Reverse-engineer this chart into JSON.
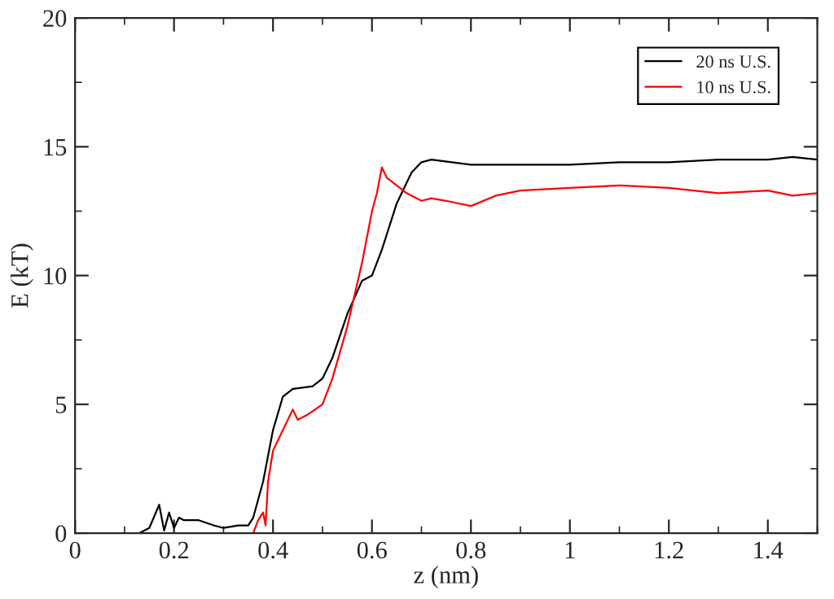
{
  "chart_data": {
    "type": "line",
    "xlabel": "z (nm)",
    "ylabel": "E (kT)",
    "xlim": [
      0,
      1.5
    ],
    "ylim": [
      0,
      20
    ],
    "xticks": [
      0,
      0.2,
      0.4,
      0.6,
      0.8,
      1,
      1.2,
      1.4
    ],
    "yticks": [
      0,
      5,
      10,
      15,
      20
    ],
    "grid": false,
    "legend": "top right",
    "marker": "none",
    "line_style": "solid",
    "series": [
      {
        "name": "20 ns U.S.",
        "color": "#000000",
        "x": [
          0.13,
          0.15,
          0.17,
          0.18,
          0.19,
          0.2,
          0.21,
          0.22,
          0.25,
          0.28,
          0.3,
          0.33,
          0.35,
          0.36,
          0.38,
          0.4,
          0.42,
          0.44,
          0.48,
          0.5,
          0.52,
          0.55,
          0.58,
          0.6,
          0.62,
          0.65,
          0.68,
          0.7,
          0.72,
          0.8,
          0.9,
          1.0,
          1.1,
          1.2,
          1.3,
          1.4,
          1.45,
          1.5
        ],
        "values": [
          0,
          0.2,
          1.1,
          0.1,
          0.8,
          0.2,
          0.6,
          0.5,
          0.5,
          0.3,
          0.2,
          0.3,
          0.3,
          0.6,
          2,
          4,
          5.3,
          5.6,
          5.7,
          6,
          6.8,
          8.5,
          9.8,
          10,
          11,
          12.8,
          14,
          14.4,
          14.5,
          14.3,
          14.3,
          14.3,
          14.4,
          14.4,
          14.5,
          14.5,
          14.6,
          14.5
        ]
      },
      {
        "name": "10 ns U.S.",
        "color": "#ff0000",
        "x": [
          0.36,
          0.37,
          0.38,
          0.385,
          0.39,
          0.4,
          0.42,
          0.44,
          0.45,
          0.47,
          0.5,
          0.52,
          0.55,
          0.58,
          0.6,
          0.61,
          0.62,
          0.63,
          0.65,
          0.67,
          0.7,
          0.72,
          0.75,
          0.8,
          0.85,
          0.9,
          1.0,
          1.1,
          1.2,
          1.3,
          1.4,
          1.45,
          1.5
        ],
        "values": [
          0,
          0.5,
          0.8,
          0.3,
          2,
          3.2,
          4,
          4.8,
          4.4,
          4.6,
          5,
          6,
          8,
          10.5,
          12.5,
          13.2,
          14.2,
          13.8,
          13.5,
          13.2,
          12.9,
          13,
          12.9,
          12.7,
          13.1,
          13.3,
          13.4,
          13.5,
          13.4,
          13.2,
          13.3,
          13.1,
          13.2
        ]
      }
    ]
  }
}
